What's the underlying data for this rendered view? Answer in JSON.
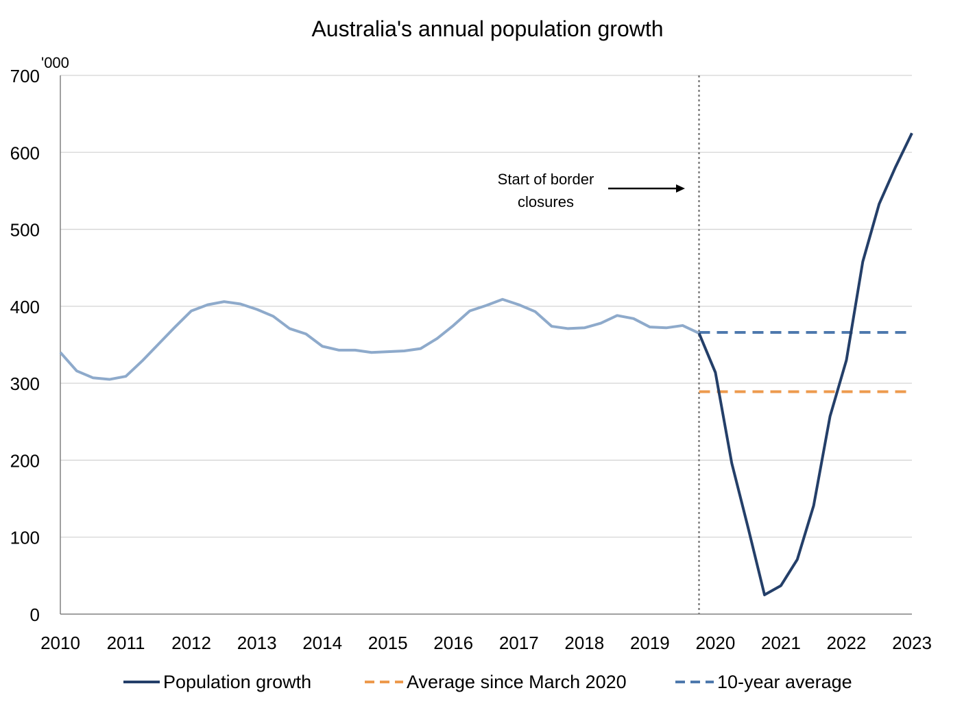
{
  "chart_data": {
    "type": "line",
    "title": "Australia's annual population growth",
    "y_unit_label": "'000",
    "xlabel": "",
    "ylabel": "",
    "ylim": [
      0,
      700
    ],
    "y_ticks": [
      0,
      100,
      200,
      300,
      400,
      500,
      600,
      700
    ],
    "xlim": [
      2010,
      2023
    ],
    "x_ticks": [
      "2010",
      "2011",
      "2012",
      "2013",
      "2014",
      "2015",
      "2016",
      "2017",
      "2018",
      "2019",
      "2020",
      "2021",
      "2022",
      "2023"
    ],
    "grid": "horizontal",
    "legend_position": "bottom",
    "series": [
      {
        "name": "Population growth",
        "style": "solid",
        "color_pre_2020": "#8eaacb",
        "color": "#243f69",
        "x": [
          2010.0,
          2010.25,
          2010.5,
          2010.75,
          2011.0,
          2011.25,
          2011.5,
          2011.75,
          2012.0,
          2012.25,
          2012.5,
          2012.75,
          2013.0,
          2013.25,
          2013.5,
          2013.75,
          2014.0,
          2014.25,
          2014.5,
          2014.75,
          2015.0,
          2015.25,
          2015.5,
          2015.75,
          2016.0,
          2016.25,
          2016.5,
          2016.75,
          2017.0,
          2017.25,
          2017.5,
          2017.75,
          2018.0,
          2018.25,
          2018.5,
          2018.75,
          2019.0,
          2019.25,
          2019.5,
          2019.75,
          2020.0,
          2020.25,
          2020.5,
          2020.75,
          2021.0,
          2021.25,
          2021.5,
          2021.75,
          2022.0,
          2022.25,
          2022.5,
          2022.75,
          2023.0
        ],
        "values": [
          340,
          316,
          307,
          305,
          309,
          329,
          351,
          373,
          394,
          402,
          406,
          403,
          396,
          387,
          371,
          364,
          348,
          343,
          343,
          340,
          341,
          342,
          345,
          358,
          375,
          394,
          401,
          409,
          402,
          393,
          374,
          371,
          372,
          378,
          388,
          384,
          373,
          372,
          375,
          365,
          314,
          196,
          112,
          25,
          37,
          71,
          141,
          257,
          330,
          458,
          533,
          581,
          625
        ]
      },
      {
        "name": "Average since March 2020",
        "style": "dashed",
        "color": "#ed9a4d",
        "x": [
          2019.75,
          2023.0
        ],
        "values": [
          289,
          289
        ]
      },
      {
        "name": "10-year average",
        "style": "dashed",
        "color": "#4e79ad",
        "x": [
          2019.75,
          2023.0
        ],
        "values": [
          366,
          366
        ]
      }
    ],
    "annotations": [
      {
        "text_lines": [
          "Start of border",
          "closures"
        ],
        "arrow": true,
        "x": 2019.75,
        "marker_line": "dotted vertical"
      }
    ]
  }
}
